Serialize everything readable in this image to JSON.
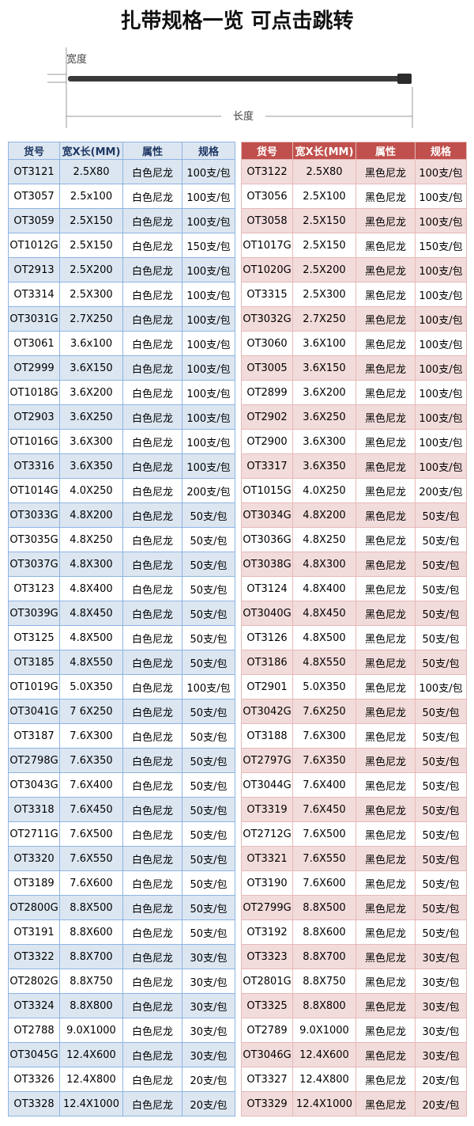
{
  "title": "扎带规格一览 可点击跳转",
  "diagram": {
    "width_label": "宽度",
    "length_label": "长度"
  },
  "left_table": {
    "headers": [
      "货号",
      "宽X长(MM)",
      "属性",
      "规格"
    ],
    "rows": [
      [
        "OT3121",
        "2.5X80",
        "白色尼龙",
        "100支/包"
      ],
      [
        "OT3057",
        "2.5x100",
        "白色尼龙",
        "100支/包"
      ],
      [
        "OT3059",
        "2.5X150",
        "白色尼龙",
        "100支/包"
      ],
      [
        "OT1012G",
        "2.5X150",
        "白色尼龙",
        "150支/包"
      ],
      [
        "OT2913",
        "2.5X200",
        "白色尼龙",
        "100支/包"
      ],
      [
        "OT3314",
        "2.5X300",
        "白色尼龙",
        "100支/包"
      ],
      [
        "OT3031G",
        "2.7X250",
        "白色尼龙",
        "100支/包"
      ],
      [
        "OT3061",
        "3.6x100",
        "白色尼龙",
        "100支/包"
      ],
      [
        "OT2999",
        "3.6X150",
        "白色尼龙",
        "100支/包"
      ],
      [
        "OT1018G",
        "3.6X200",
        "白色尼龙",
        "100支/包"
      ],
      [
        "OT2903",
        "3.6X250",
        "白色尼龙",
        "100支/包"
      ],
      [
        "OT1016G",
        "3.6X300",
        "白色尼龙",
        "100支/包"
      ],
      [
        "OT3316",
        "3.6X350",
        "白色尼龙",
        "100支/包"
      ],
      [
        "OT1014G",
        "4.0X250",
        "白色尼龙",
        "200支/包"
      ],
      [
        "OT3033G",
        "4.8X200",
        "白色尼龙",
        "50支/包"
      ],
      [
        "OT3035G",
        "4.8X250",
        "白色尼龙",
        "50支/包"
      ],
      [
        "OT3037G",
        "4.8X300",
        "白色尼龙",
        "50支/包"
      ],
      [
        "OT3123",
        "4.8X400",
        "白色尼龙",
        "50支/包"
      ],
      [
        "OT3039G",
        "4.8X450",
        "白色尼龙",
        "50支/包"
      ],
      [
        "OT3125",
        "4.8X500",
        "白色尼龙",
        "50支/包"
      ],
      [
        "OT3185",
        "4.8X550",
        "白色尼龙",
        "50支/包"
      ],
      [
        "OT1019G",
        "5.0X350",
        "白色尼龙",
        "100支/包"
      ],
      [
        "OT3041G",
        "7 6X250",
        "白色尼龙",
        "50支/包"
      ],
      [
        "OT3187",
        "7.6X300",
        "白色尼龙",
        "50支/包"
      ],
      [
        "OT2798G",
        "7.6X350",
        "白色尼龙",
        "50支/包"
      ],
      [
        "OT3043G",
        "7.6X400",
        "白色尼龙",
        "50支/包"
      ],
      [
        "OT3318",
        "7.6X450",
        "白色尼龙",
        "50支/包"
      ],
      [
        "OT2711G",
        "7.6X500",
        "白色尼龙",
        "50支/包"
      ],
      [
        "OT3320",
        "7.6X550",
        "白色尼龙",
        "50支/包"
      ],
      [
        "OT3189",
        "7.6X600",
        "白色尼龙",
        "50支/包"
      ],
      [
        "OT2800G",
        "8.8X500",
        "白色尼龙",
        "50支/包"
      ],
      [
        "OT3191",
        "8.8X600",
        "白色尼龙",
        "50支/包"
      ],
      [
        "OT3322",
        "8.8X700",
        "白色尼龙",
        "30支/包"
      ],
      [
        "OT2802G",
        "8.8X750",
        "白色尼龙",
        "30支/包"
      ],
      [
        "OT3324",
        "8.8X800",
        "白色尼龙",
        "30支/包"
      ],
      [
        "OT2788",
        "9.0X1000",
        "白色尼龙",
        "30支/包"
      ],
      [
        "OT3045G",
        "12.4X600",
        "白色尼龙",
        "30支/包"
      ],
      [
        "OT3326",
        "12.4X800",
        "白色尼龙",
        "20支/包"
      ],
      [
        "OT3328",
        "12.4X1000",
        "白色尼龙",
        "20支/包"
      ]
    ]
  },
  "right_table": {
    "headers": [
      "货号",
      "宽X长(MM)",
      "属性",
      "规格"
    ],
    "rows": [
      [
        "OT3122",
        "2.5X80",
        "黑色尼龙",
        "100支/包"
      ],
      [
        "OT3056",
        "2.5X100",
        "黑色尼龙",
        "100支/包"
      ],
      [
        "OT3058",
        "2.5X150",
        "黑色尼龙",
        "100支/包"
      ],
      [
        "OT1017G",
        "2.5X150",
        "黑色尼龙",
        "150支/包"
      ],
      [
        "OT1020G",
        "2.5X200",
        "黑色尼龙",
        "100支/包"
      ],
      [
        "OT3315",
        "2.5X300",
        "黑色尼龙",
        "100支/包"
      ],
      [
        "OT3032G",
        "2.7X250",
        "黑色尼龙",
        "100支/包"
      ],
      [
        "OT3060",
        "3.6X100",
        "黑色尼龙",
        "100支/包"
      ],
      [
        "OT3005",
        "3.6X150",
        "黑色尼龙",
        "100支/包"
      ],
      [
        "OT2899",
        "3.6X200",
        "黑色尼龙",
        "100支/包"
      ],
      [
        "OT2902",
        "3.6X250",
        "黑色尼龙",
        "100支/包"
      ],
      [
        "OT2900",
        "3.6X300",
        "黑色尼龙",
        "100支/包"
      ],
      [
        "OT3317",
        "3.6X350",
        "黑色尼龙",
        "100支/包"
      ],
      [
        "OT1015G",
        "4.0X250",
        "黑色尼龙",
        "200支/包"
      ],
      [
        "OT3034G",
        "4.8X200",
        "黑色尼龙",
        "50支/包"
      ],
      [
        "OT3036G",
        "4.8X250",
        "黑色尼龙",
        "50支/包"
      ],
      [
        "OT3038G",
        "4.8X300",
        "黑色尼龙",
        "50支/包"
      ],
      [
        "OT3124",
        "4.8X400",
        "黑色尼龙",
        "50支/包"
      ],
      [
        "OT3040G",
        "4.8X450",
        "黑色尼龙",
        "50支/包"
      ],
      [
        "OT3126",
        "4.8X500",
        "黑色尼龙",
        "50支/包"
      ],
      [
        "OT3186",
        "4.8X550",
        "黑色尼龙",
        "50支/包"
      ],
      [
        "OT2901",
        "5.0X350",
        "黑色尼龙",
        "100支/包"
      ],
      [
        "OT3042G",
        "7.6X250",
        "黑色尼龙",
        "50支/包"
      ],
      [
        "OT3188",
        "7.6X300",
        "黑色尼龙",
        "50支/包"
      ],
      [
        "OT2797G",
        "7.6X350",
        "黑色尼龙",
        "50支/包"
      ],
      [
        "OT3044G",
        "7.6X400",
        "黑色尼龙",
        "50支/包"
      ],
      [
        "OT3319",
        "7.6X450",
        "黑色尼龙",
        "50支/包"
      ],
      [
        "OT2712G",
        "7.6X500",
        "黑色尼龙",
        "50支/包"
      ],
      [
        "OT3321",
        "7.6X550",
        "黑色尼龙",
        "50支/包"
      ],
      [
        "OT3190",
        "7.6X600",
        "黑色尼龙",
        "50支/包"
      ],
      [
        "OT2799G",
        "8.8X500",
        "黑色尼龙",
        "50支/包"
      ],
      [
        "OT3192",
        "8.8X600",
        "黑色尼龙",
        "50支/包"
      ],
      [
        "OT3323",
        "8.8X700",
        "黑色尼龙",
        "30支/包"
      ],
      [
        "OT2801G",
        "8.8X750",
        "黑色尼龙",
        "30支/包"
      ],
      [
        "OT3325",
        "8.8X800",
        "黑色尼龙",
        "30支/包"
      ],
      [
        "OT2789",
        "9.0X1000",
        "黑色尼龙",
        "30支/包"
      ],
      [
        "OT3046G",
        "12.4X600",
        "黑色尼龙",
        "30支/包"
      ],
      [
        "OT3327",
        "12.4X800",
        "黑色尼龙",
        "20支/包"
      ],
      [
        "OT3329",
        "12.4X1000",
        "黑色尼龙",
        "20支/包"
      ]
    ]
  }
}
